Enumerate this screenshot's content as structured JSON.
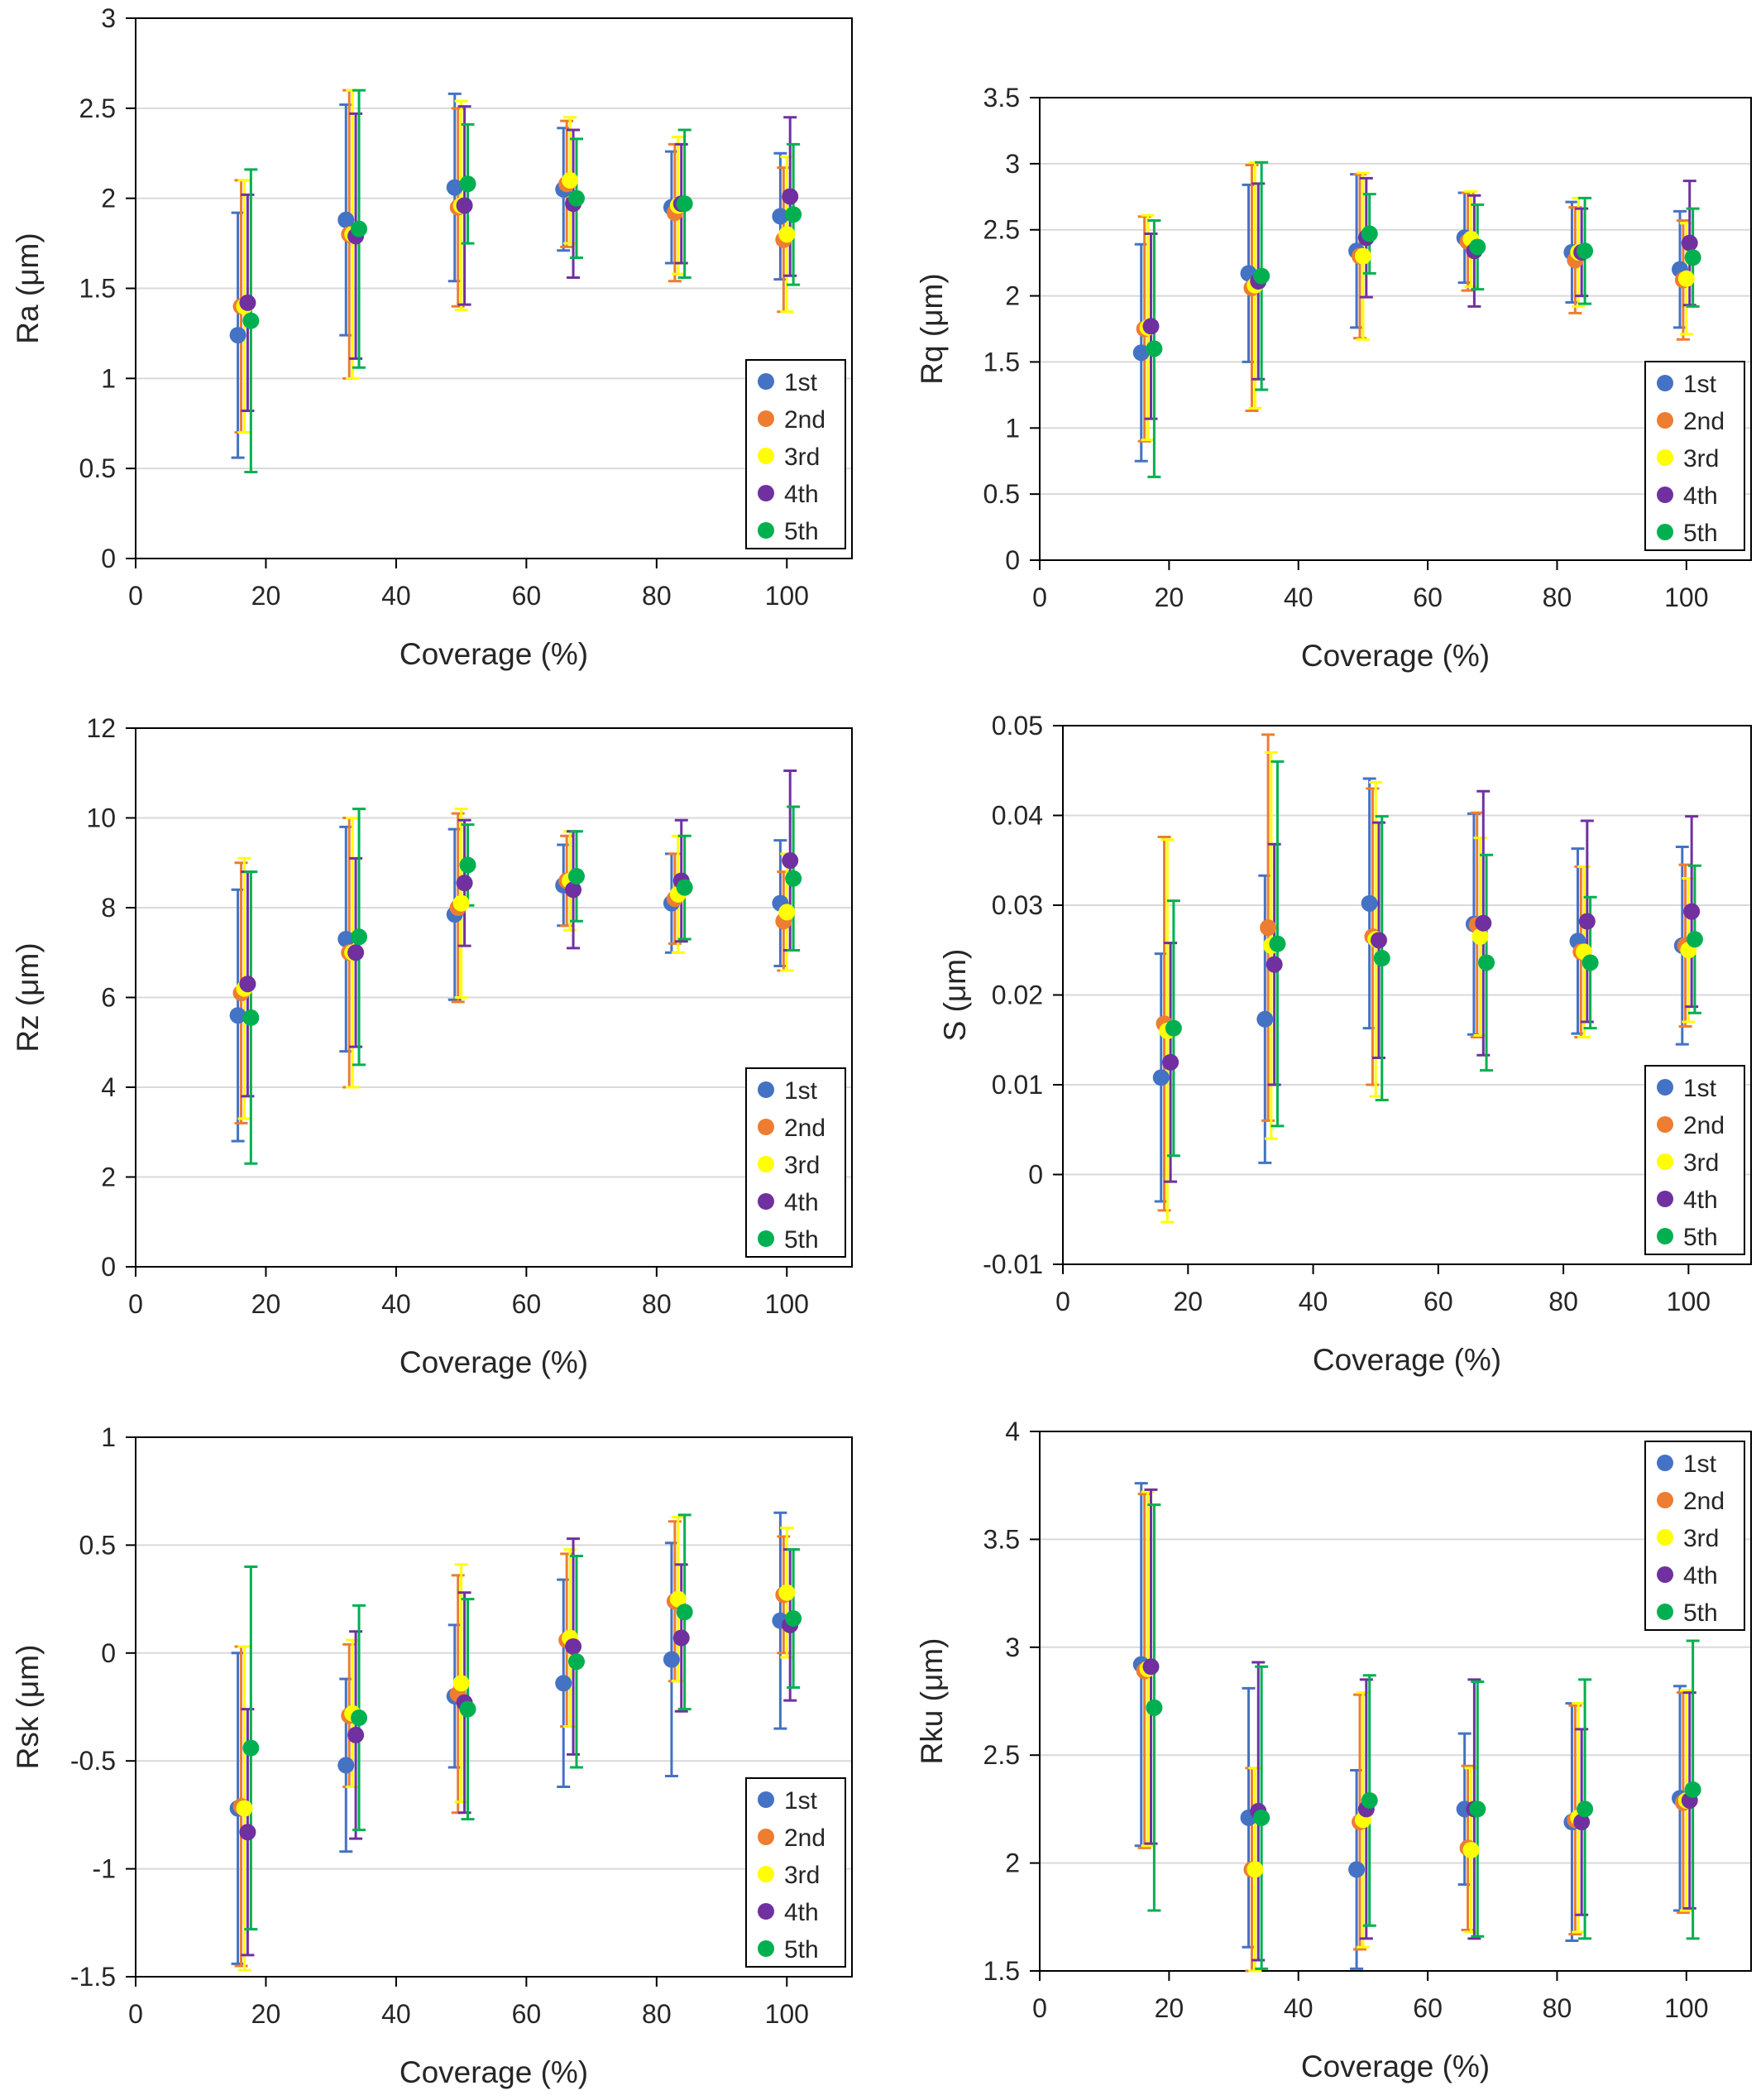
{
  "colors": {
    "1st": "#4472C4",
    "2nd": "#ED7D31",
    "3rd": "#FFFF00",
    "4th": "#7030A0",
    "5th": "#00B050",
    "gridline": "#D9D9D9",
    "axis": "#000000"
  },
  "chart_data": [
    {
      "id": "ra",
      "type": "scatter",
      "xlabel": "Coverage (%)",
      "ylabel": "Ra (μm)",
      "xlim": [
        0,
        110
      ],
      "xticks": [
        0,
        20,
        40,
        60,
        80,
        100
      ],
      "ylim": [
        0,
        3
      ],
      "yticks": [
        0,
        0.5,
        1,
        1.5,
        2,
        2.5,
        3
      ],
      "ytick_labels": [
        "0",
        "0.5",
        "1",
        "1.5",
        "2",
        "2.5",
        "3"
      ],
      "grid": true,
      "legend_position": "bottom-right",
      "x": [
        16.7,
        33.3,
        50,
        66.7,
        83.3,
        100
      ],
      "series": [
        {
          "name": "1st",
          "values": [
            1.24,
            1.88,
            2.06,
            2.05,
            1.95,
            1.9
          ],
          "errors": [
            0.68,
            0.64,
            0.52,
            0.34,
            0.31,
            0.35
          ]
        },
        {
          "name": "2nd",
          "values": [
            1.4,
            1.8,
            1.95,
            2.08,
            1.92,
            1.77
          ],
          "errors": [
            0.7,
            0.8,
            0.55,
            0.35,
            0.38,
            0.4
          ]
        },
        {
          "name": "3rd",
          "values": [
            1.4,
            1.8,
            1.96,
            2.1,
            1.96,
            1.8
          ],
          "errors": [
            0.7,
            0.8,
            0.58,
            0.35,
            0.38,
            0.43
          ]
        },
        {
          "name": "4th",
          "values": [
            1.42,
            1.79,
            1.96,
            1.97,
            1.97,
            2.01
          ],
          "errors": [
            0.6,
            0.68,
            0.55,
            0.41,
            0.33,
            0.44
          ]
        },
        {
          "name": "5th",
          "values": [
            1.32,
            1.83,
            2.08,
            2.0,
            1.97,
            1.91
          ],
          "errors": [
            0.84,
            0.77,
            0.33,
            0.33,
            0.41,
            0.39
          ]
        }
      ]
    },
    {
      "id": "rq",
      "type": "scatter",
      "xlabel": "Coverage (%)",
      "ylabel": "Rq (μm)",
      "xlim": [
        0,
        110
      ],
      "xticks": [
        0,
        20,
        40,
        60,
        80,
        100
      ],
      "ylim": [
        0,
        3.5
      ],
      "yticks": [
        0,
        0.5,
        1,
        1.5,
        2,
        2.5,
        3,
        3.5
      ],
      "ytick_labels": [
        "0",
        "0.5",
        "1",
        "1.5",
        "2",
        "2.5",
        "3",
        "3.5"
      ],
      "grid": true,
      "legend_position": "bottom-right",
      "x": [
        16.7,
        33.3,
        50,
        66.7,
        83.3,
        100
      ],
      "series": [
        {
          "name": "1st",
          "values": [
            1.57,
            2.17,
            2.34,
            2.44,
            2.33,
            2.2
          ],
          "errors": [
            0.82,
            0.67,
            0.58,
            0.34,
            0.38,
            0.44
          ]
        },
        {
          "name": "2nd",
          "values": [
            1.75,
            2.06,
            2.3,
            2.41,
            2.27,
            2.12
          ],
          "errors": [
            0.85,
            0.93,
            0.62,
            0.37,
            0.4,
            0.45
          ]
        },
        {
          "name": "3rd",
          "values": [
            1.76,
            2.08,
            2.3,
            2.43,
            2.33,
            2.13
          ],
          "errors": [
            0.85,
            0.93,
            0.63,
            0.36,
            0.41,
            0.42
          ]
        },
        {
          "name": "4th",
          "values": [
            1.77,
            2.11,
            2.44,
            2.34,
            2.33,
            2.4
          ],
          "errors": [
            0.7,
            0.74,
            0.45,
            0.42,
            0.33,
            0.47
          ]
        },
        {
          "name": "5th",
          "values": [
            1.6,
            2.15,
            2.47,
            2.37,
            2.34,
            2.29
          ],
          "errors": [
            0.97,
            0.86,
            0.3,
            0.32,
            0.4,
            0.37
          ]
        }
      ]
    },
    {
      "id": "rz",
      "type": "scatter",
      "xlabel": "Coverage (%)",
      "ylabel": "Rz (μm)",
      "xlim": [
        0,
        110
      ],
      "xticks": [
        0,
        20,
        40,
        60,
        80,
        100
      ],
      "ylim": [
        0,
        12
      ],
      "yticks": [
        0,
        2,
        4,
        6,
        8,
        10,
        12
      ],
      "ytick_labels": [
        "0",
        "2",
        "4",
        "6",
        "8",
        "10",
        "12"
      ],
      "grid": true,
      "legend_position": "bottom-right",
      "x": [
        16.7,
        33.3,
        50,
        66.7,
        83.3,
        100
      ],
      "series": [
        {
          "name": "1st",
          "values": [
            5.6,
            7.3,
            7.85,
            8.5,
            8.1,
            8.1
          ],
          "errors": [
            2.8,
            2.5,
            1.9,
            0.9,
            1.1,
            1.4
          ]
        },
        {
          "name": "2nd",
          "values": [
            6.1,
            7.0,
            8.0,
            8.6,
            8.2,
            7.7
          ],
          "errors": [
            2.9,
            3.0,
            2.1,
            1.0,
            1.0,
            1.1
          ]
        },
        {
          "name": "3rd",
          "values": [
            6.2,
            7.0,
            8.1,
            8.6,
            8.3,
            7.9
          ],
          "errors": [
            2.9,
            3.0,
            2.1,
            1.1,
            1.3,
            1.3
          ]
        },
        {
          "name": "4th",
          "values": [
            6.3,
            7.0,
            8.55,
            8.4,
            8.6,
            9.05
          ],
          "errors": [
            2.5,
            2.1,
            1.4,
            1.3,
            1.35,
            2.0
          ]
        },
        {
          "name": "5th",
          "values": [
            5.55,
            7.35,
            8.95,
            8.7,
            8.45,
            8.65
          ],
          "errors": [
            3.25,
            2.85,
            0.9,
            1.0,
            1.15,
            1.6
          ]
        }
      ]
    },
    {
      "id": "s",
      "type": "scatter",
      "xlabel": "Coverage (%)",
      "ylabel": "S (μm)",
      "xlim": [
        0,
        110
      ],
      "xticks": [
        0,
        20,
        40,
        60,
        80,
        100
      ],
      "ylim": [
        -0.01,
        0.05
      ],
      "yticks": [
        -0.01,
        0,
        0.01,
        0.02,
        0.03,
        0.04,
        0.05
      ],
      "ytick_labels": [
        "-0.01",
        "0",
        "0.01",
        "0.02",
        "0.03",
        "0.04",
        "0.05"
      ],
      "grid": true,
      "legend_position": "bottom-right",
      "x": [
        16.7,
        33.3,
        50,
        66.7,
        83.3,
        100
      ],
      "series": [
        {
          "name": "1st",
          "values": [
            0.0108,
            0.0173,
            0.0302,
            0.0279,
            0.026,
            0.0255
          ],
          "errors": [
            0.0138,
            0.016,
            0.0139,
            0.0123,
            0.0103,
            0.011
          ]
        },
        {
          "name": "2nd",
          "values": [
            0.0168,
            0.0275,
            0.0265,
            0.0278,
            0.0248,
            0.0255
          ],
          "errors": [
            0.0208,
            0.0215,
            0.0165,
            0.0125,
            0.0095,
            0.009
          ]
        },
        {
          "name": "3rd",
          "values": [
            0.016,
            0.0255,
            0.0262,
            0.0265,
            0.0248,
            0.025
          ],
          "errors": [
            0.0213,
            0.0215,
            0.0175,
            0.011,
            0.0095,
            0.008
          ]
        },
        {
          "name": "4th",
          "values": [
            0.0125,
            0.0234,
            0.0261,
            0.028,
            0.0282,
            0.0293
          ],
          "errors": [
            0.0133,
            0.0134,
            0.0131,
            0.0147,
            0.0112,
            0.0106
          ]
        },
        {
          "name": "5th",
          "values": [
            0.0163,
            0.0257,
            0.0241,
            0.0236,
            0.0236,
            0.0262
          ],
          "errors": [
            0.0142,
            0.0203,
            0.0158,
            0.012,
            0.0073,
            0.0082
          ]
        }
      ]
    },
    {
      "id": "rsk",
      "type": "scatter",
      "xlabel": "Coverage (%)",
      "ylabel": "Rsk (μm)",
      "xlim": [
        0,
        110
      ],
      "xticks": [
        0,
        20,
        40,
        60,
        80,
        100
      ],
      "ylim": [
        -1.5,
        1
      ],
      "yticks": [
        -1.5,
        -1,
        -0.5,
        0,
        0.5,
        1
      ],
      "ytick_labels": [
        "-1.5",
        "-1",
        "-0.5",
        "0",
        "0.5",
        "1"
      ],
      "grid": true,
      "legend_position": "bottom-right",
      "x": [
        16.7,
        33.3,
        50,
        66.7,
        83.3,
        100
      ],
      "series": [
        {
          "name": "1st",
          "values": [
            -0.72,
            -0.52,
            -0.2,
            -0.14,
            -0.03,
            0.15
          ],
          "errors": [
            0.72,
            0.4,
            0.33,
            0.48,
            0.54,
            0.5
          ]
        },
        {
          "name": "2nd",
          "values": [
            -0.71,
            -0.29,
            -0.19,
            0.06,
            0.24,
            0.27
          ],
          "errors": [
            0.74,
            0.33,
            0.55,
            0.4,
            0.37,
            0.27
          ]
        },
        {
          "name": "3rd",
          "values": [
            -0.72,
            -0.28,
            -0.14,
            0.07,
            0.25,
            0.28
          ],
          "errors": [
            0.75,
            0.34,
            0.55,
            0.41,
            0.38,
            0.3
          ]
        },
        {
          "name": "4th",
          "values": [
            -0.83,
            -0.38,
            -0.23,
            0.03,
            0.07,
            0.13
          ],
          "errors": [
            0.57,
            0.48,
            0.51,
            0.5,
            0.34,
            0.35
          ]
        },
        {
          "name": "5th",
          "values": [
            -0.44,
            -0.3,
            -0.26,
            -0.04,
            0.19,
            0.16
          ],
          "errors": [
            0.84,
            0.52,
            0.51,
            0.49,
            0.45,
            0.32
          ]
        }
      ]
    },
    {
      "id": "rku",
      "type": "scatter",
      "xlabel": "Coverage (%)",
      "ylabel": "Rku (μm)",
      "xlim": [
        0,
        110
      ],
      "xticks": [
        0,
        20,
        40,
        60,
        80,
        100
      ],
      "ylim": [
        1.5,
        4
      ],
      "yticks": [
        1.5,
        2,
        2.5,
        3,
        3.5,
        4
      ],
      "ytick_labels": [
        "1.5",
        "2",
        "2.5",
        "3",
        "3.5",
        "4"
      ],
      "grid": true,
      "legend_position": "top-right",
      "x": [
        16.7,
        33.3,
        50,
        66.7,
        83.3,
        100
      ],
      "series": [
        {
          "name": "1st",
          "values": [
            2.92,
            2.21,
            1.97,
            2.25,
            2.19,
            2.3
          ],
          "errors": [
            0.84,
            0.6,
            0.46,
            0.35,
            0.55,
            0.52
          ]
        },
        {
          "name": "2nd",
          "values": [
            2.89,
            1.97,
            2.19,
            2.07,
            2.2,
            2.28
          ],
          "errors": [
            0.82,
            0.47,
            0.59,
            0.38,
            0.53,
            0.51
          ]
        },
        {
          "name": "3rd",
          "values": [
            2.9,
            1.97,
            2.2,
            2.06,
            2.21,
            2.29
          ],
          "errors": [
            0.82,
            0.47,
            0.59,
            0.38,
            0.53,
            0.51
          ]
        },
        {
          "name": "4th",
          "values": [
            2.91,
            2.24,
            2.25,
            2.25,
            2.19,
            2.29
          ],
          "errors": [
            0.82,
            0.69,
            0.6,
            0.6,
            0.43,
            0.5
          ]
        },
        {
          "name": "5th",
          "values": [
            2.72,
            2.21,
            2.29,
            2.25,
            2.25,
            2.34
          ],
          "errors": [
            0.94,
            0.7,
            0.58,
            0.59,
            0.6,
            0.69
          ]
        }
      ]
    }
  ]
}
